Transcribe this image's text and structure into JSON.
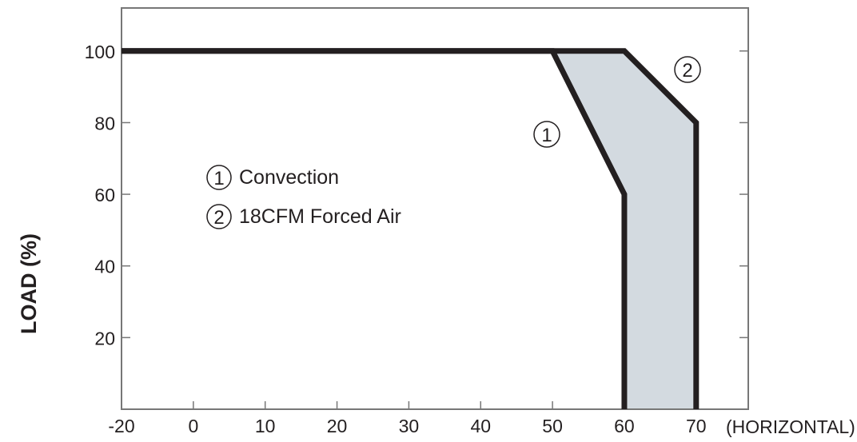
{
  "chart_data": {
    "type": "line",
    "title": "",
    "xlabel": "(HORIZONTAL)",
    "ylabel": "LOAD (%)",
    "x_ticks": [
      -20,
      0,
      10,
      20,
      30,
      40,
      50,
      60,
      70
    ],
    "y_ticks": [
      20,
      40,
      60,
      80,
      100
    ],
    "xlim": [
      -20,
      77
    ],
    "ylim": [
      0,
      112
    ],
    "grid": false,
    "series": [
      {
        "name": "Convection",
        "marker": "1",
        "x": [
          -20,
          50,
          60,
          60
        ],
        "y": [
          100,
          100,
          60,
          0
        ]
      },
      {
        "name": "18CFM Forced Air",
        "marker": "2",
        "x": [
          -20,
          60,
          70,
          70
        ],
        "y": [
          100,
          100,
          80,
          0
        ]
      }
    ],
    "shaded_region": "between series 1 and 2",
    "legend": [
      {
        "marker": "1",
        "label": "Convection"
      },
      {
        "marker": "2",
        "label": "18CFM Forced Air"
      }
    ],
    "legend_placement": "upper-left",
    "colors": {
      "line": "#231f20",
      "fill": "#d3dae0",
      "axis": "#777777"
    }
  }
}
